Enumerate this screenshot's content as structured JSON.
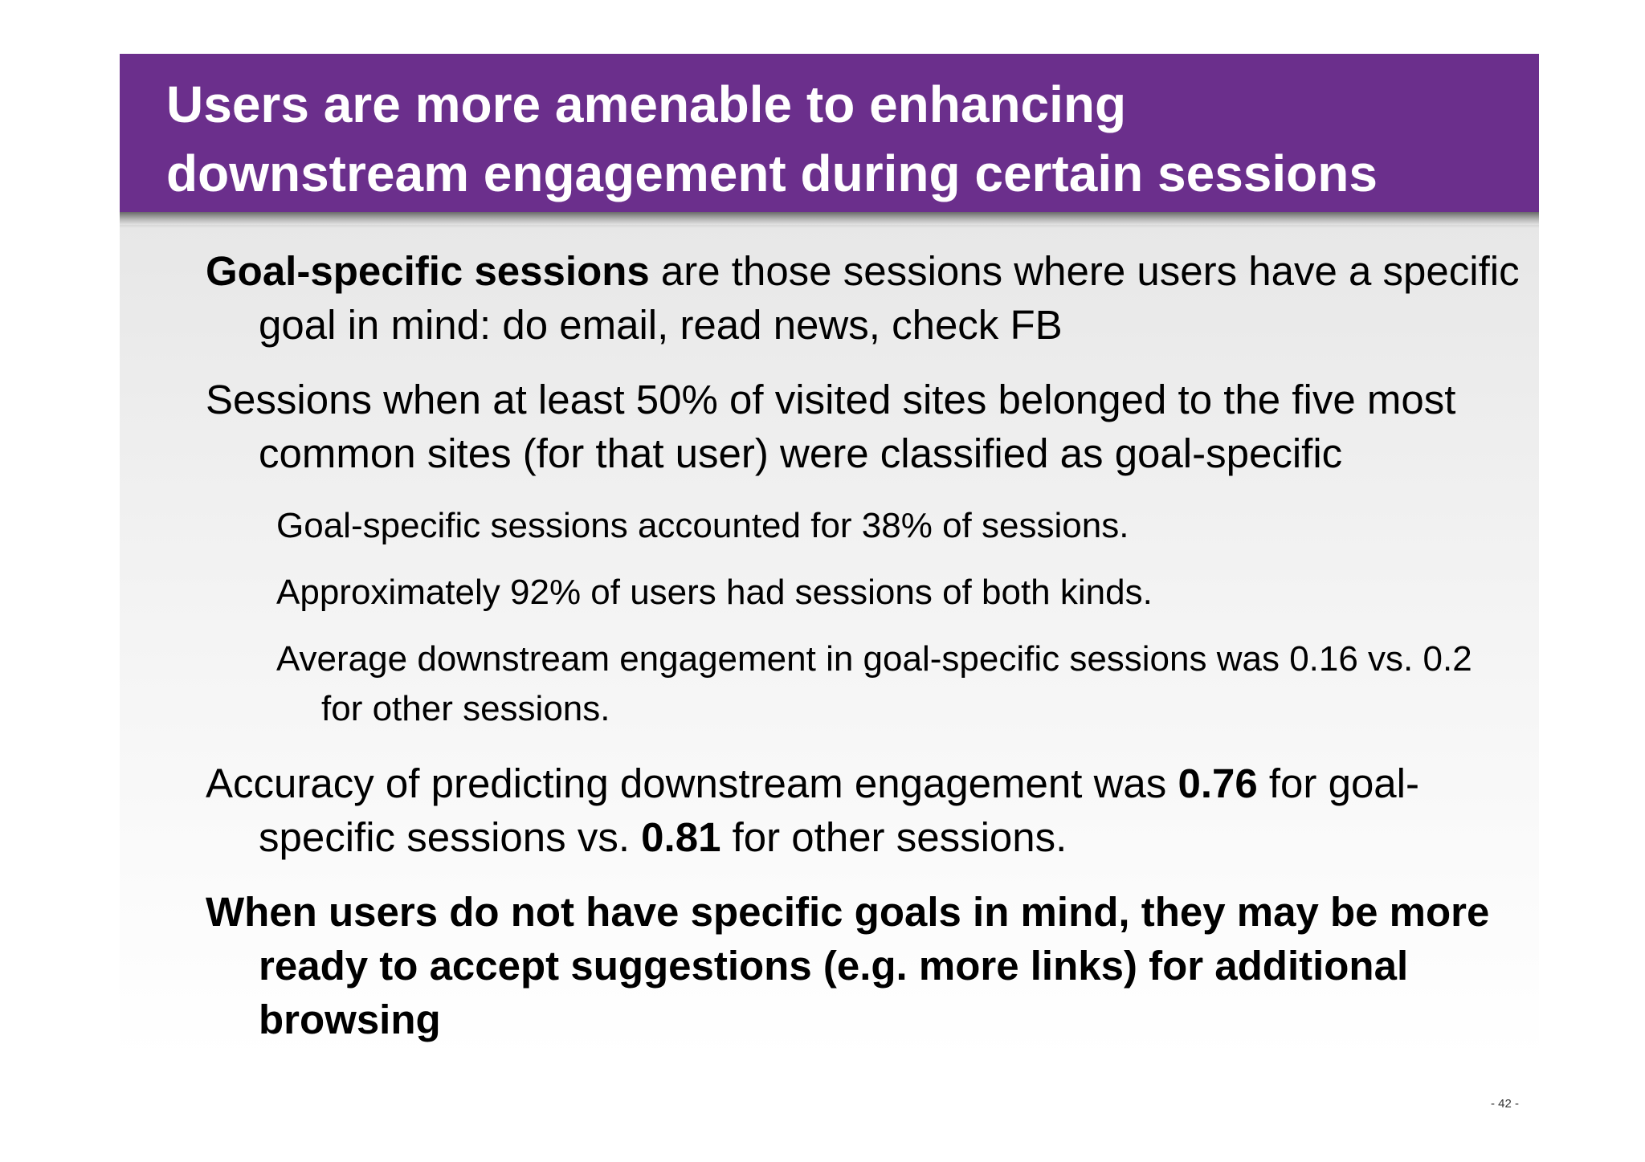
{
  "title": {
    "line1": "Users are more amenable to enhancing",
    "line2": "downstream engagement during certain sessions"
  },
  "bullets": {
    "b1": {
      "bold_lead": "Goal-specific sessions",
      "text": " are those sessions where users have a specific goal in mind: do email, read news, check FB"
    },
    "b2": {
      "text": "Sessions when at least 50% of visited sites belonged to the five most common sites (for that user) were classified as goal-specific"
    },
    "sub": [
      "Goal-specific sessions accounted for 38% of sessions.",
      "Approximately 92% of users had sessions of both kinds.",
      "Average downstream engagement in goal-specific sessions was 0.16 vs. 0.2 for other sessions."
    ],
    "b3": {
      "part1": "Accuracy of predicting downstream engagement was ",
      "value1": "0.76",
      "part2": " for goal-specific sessions vs. ",
      "value2": "0.81",
      "part3": " for other sessions."
    },
    "b4": {
      "text": "When users do not have specific goals in mind, they may be more ready to accept suggestions (e.g. more links) for additional browsing"
    }
  },
  "page_number": "- 42 -"
}
